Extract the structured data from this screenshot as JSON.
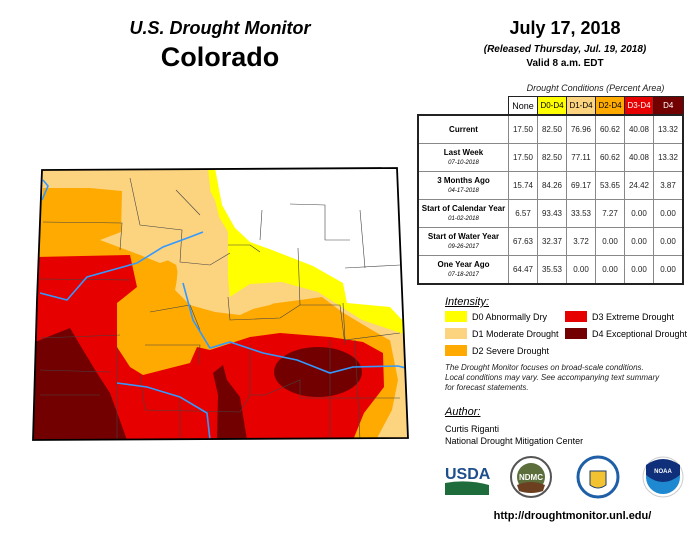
{
  "header": {
    "title": "U.S. Drought Monitor",
    "state": "Colorado",
    "date": "July 17, 2018",
    "released": "(Released Thursday, Jul. 19, 2018)",
    "valid": "Valid 8 a.m. EDT"
  },
  "table": {
    "caption": "Drought Conditions (Percent Area)",
    "columns": [
      "None",
      "D0-D4",
      "D1-D4",
      "D2-D4",
      "D3-D4",
      "D4"
    ],
    "column_colors": [
      "#FFFFFF",
      "#FFFF00",
      "#FCD37F",
      "#FFAA00",
      "#E60000",
      "#730000"
    ],
    "rows": [
      {
        "label": "Current",
        "date": "",
        "values": [
          "17.50",
          "82.50",
          "76.96",
          "60.62",
          "40.08",
          "13.32"
        ]
      },
      {
        "label": "Last Week",
        "date": "07-10-2018",
        "values": [
          "17.50",
          "82.50",
          "77.11",
          "60.62",
          "40.08",
          "13.32"
        ]
      },
      {
        "label": "3 Months Ago",
        "date": "04-17-2018",
        "values": [
          "15.74",
          "84.26",
          "69.17",
          "53.65",
          "24.42",
          "3.87"
        ]
      },
      {
        "label": "Start of Calendar Year",
        "date": "01-02-2018",
        "values": [
          "6.57",
          "93.43",
          "33.53",
          "7.27",
          "0.00",
          "0.00"
        ]
      },
      {
        "label": "Start of Water Year",
        "date": "09-26-2017",
        "values": [
          "67.63",
          "32.37",
          "3.72",
          "0.00",
          "0.00",
          "0.00"
        ]
      },
      {
        "label": "One Year Ago",
        "date": "07-18-2017",
        "values": [
          "64.47",
          "35.53",
          "0.00",
          "0.00",
          "0.00",
          "0.00"
        ]
      }
    ]
  },
  "legend": {
    "title": "Intensity:",
    "items": [
      {
        "label": "D0 Abnormally Dry",
        "color": "#FFFF00"
      },
      {
        "label": "D1 Moderate Drought",
        "color": "#FCD37F"
      },
      {
        "label": "D2 Severe Drought",
        "color": "#FFAA00"
      },
      {
        "label": "D3 Extreme Drought",
        "color": "#E60000"
      },
      {
        "label": "D4 Exceptional Drought",
        "color": "#730000"
      }
    ]
  },
  "note": [
    "The Drought Monitor focuses on broad-scale conditions.",
    "Local conditions may vary. See accompanying text summary",
    "for forecast statements."
  ],
  "author": {
    "title": "Author:",
    "name": "Curtis Riganti",
    "org": "National Drought Mitigation Center"
  },
  "logos": {
    "usda": "USDA",
    "ndmc": "NDMC",
    "noaa": "NOAA"
  },
  "url": "http://droughtmonitor.unl.edu/"
}
